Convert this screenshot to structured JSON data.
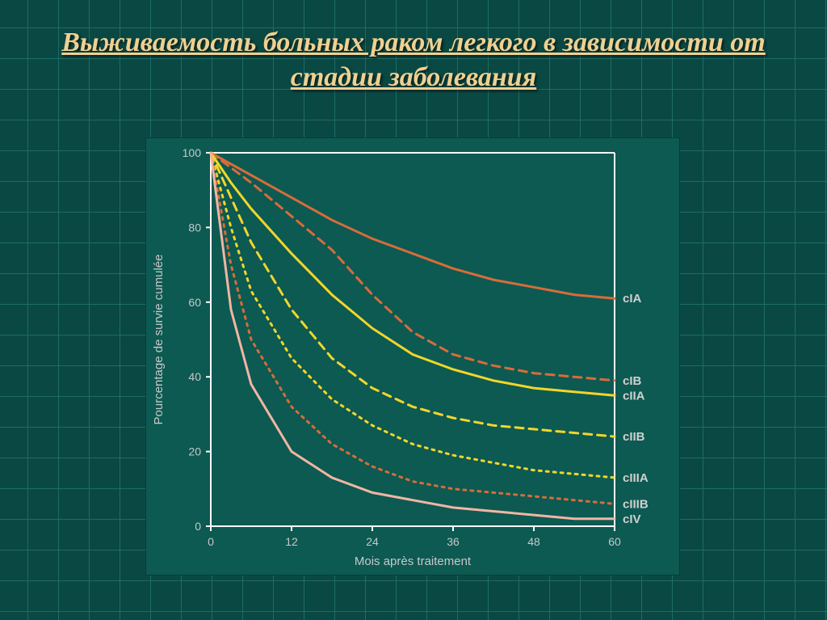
{
  "title": "Выживаемость больных раком легкого в зависимости от стадии заболевания",
  "chart": {
    "type": "line",
    "xlabel": "Mois après traitement",
    "ylabel": "Pourcentage de survie cumulée",
    "xlim": [
      0,
      60
    ],
    "ylim": [
      0,
      100
    ],
    "xticks": [
      0,
      12,
      24,
      36,
      48,
      60
    ],
    "yticks": [
      0,
      20,
      40,
      60,
      80,
      100
    ],
    "background_color": "#0c5a52",
    "grid_line_color": "#ffffff",
    "axis_color": "#ffffff",
    "tick_label_color": "#c8c8c8",
    "line_width": 3,
    "dash_pattern_dashed": "10 7",
    "dash_pattern_dotted": "3 6",
    "series": [
      {
        "name": "cIA",
        "color": "#d86c3a",
        "style": "solid",
        "x": [
          0,
          3,
          6,
          12,
          18,
          24,
          30,
          36,
          42,
          48,
          54,
          60
        ],
        "y": [
          100,
          97,
          94,
          88,
          82,
          77,
          73,
          69,
          66,
          64,
          62,
          61
        ]
      },
      {
        "name": "cIB",
        "color": "#d86c3a",
        "style": "dashed",
        "x": [
          0,
          3,
          6,
          12,
          18,
          24,
          30,
          36,
          42,
          48,
          54,
          60
        ],
        "y": [
          100,
          96,
          92,
          83,
          74,
          62,
          52,
          46,
          43,
          41,
          40,
          39
        ]
      },
      {
        "name": "cIIA",
        "color": "#f2d52a",
        "style": "solid",
        "x": [
          0,
          3,
          6,
          12,
          18,
          24,
          30,
          36,
          42,
          48,
          54,
          60
        ],
        "y": [
          100,
          92,
          85,
          73,
          62,
          53,
          46,
          42,
          39,
          37,
          36,
          35
        ]
      },
      {
        "name": "cIIB",
        "color": "#f2d52a",
        "style": "dashed",
        "x": [
          0,
          3,
          6,
          12,
          18,
          24,
          30,
          36,
          42,
          48,
          54,
          60
        ],
        "y": [
          100,
          88,
          76,
          58,
          45,
          37,
          32,
          29,
          27,
          26,
          25,
          24
        ]
      },
      {
        "name": "cIIIA",
        "color": "#f2d52a",
        "style": "dotted",
        "x": [
          0,
          3,
          6,
          12,
          18,
          24,
          30,
          36,
          42,
          48,
          54,
          60
        ],
        "y": [
          100,
          80,
          63,
          45,
          34,
          27,
          22,
          19,
          17,
          15,
          14,
          13
        ]
      },
      {
        "name": "cIIIB",
        "color": "#d86c3a",
        "style": "dotted",
        "x": [
          0,
          3,
          6,
          12,
          18,
          24,
          30,
          36,
          42,
          48,
          54,
          60
        ],
        "y": [
          100,
          70,
          50,
          32,
          22,
          16,
          12,
          10,
          9,
          8,
          7,
          6
        ]
      },
      {
        "name": "cIV",
        "color": "#f2b5a3",
        "style": "solid",
        "x": [
          0,
          3,
          6,
          12,
          18,
          24,
          30,
          36,
          42,
          48,
          54,
          60
        ],
        "y": [
          100,
          58,
          38,
          20,
          13,
          9,
          7,
          5,
          4,
          3,
          2,
          2
        ]
      }
    ]
  },
  "slide_bg_color": "#0a4844",
  "slide_grid_color": "#1f6c66",
  "title_color": "#f0d090"
}
